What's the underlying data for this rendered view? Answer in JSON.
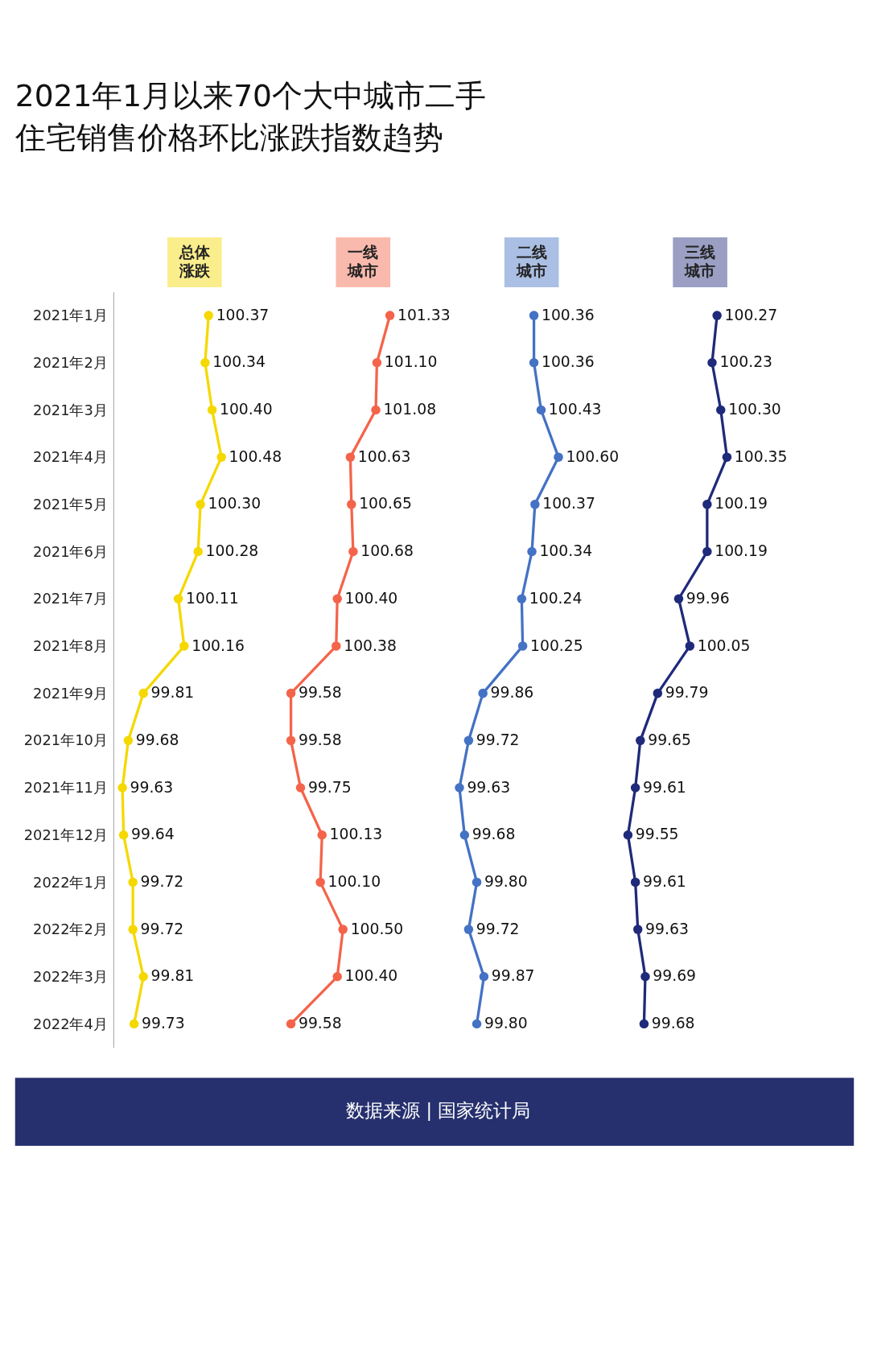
{
  "chart_data": [
    {
      "type": "line",
      "orientation": "horizontal",
      "title": "2021年1月以来70个大中城市二手住宅销售价格环比涨跌指数趋势",
      "annotations": [
        "数据来源 | 国家统计局"
      ],
      "categories": [
        "2021年1月",
        "2021年2月",
        "2021年3月",
        "2021年4月",
        "2021年5月",
        "2021年6月",
        "2021年7月",
        "2021年8月",
        "2021年9月",
        "2021年10月",
        "2021年11月",
        "2021年12月",
        "2022年1月",
        "2022年2月",
        "2022年3月",
        "2022年4月"
      ],
      "tick_labels": "y",
      "marker": "circle",
      "legend": "top",
      "line_style": "solid",
      "series": [
        {
          "name": "总体涨跌",
          "color": "#f5d800",
          "values": [
            100.37,
            100.34,
            100.4,
            100.48,
            100.3,
            100.28,
            100.11,
            100.16,
            99.81,
            99.68,
            99.63,
            99.64,
            99.72,
            99.72,
            99.81,
            99.73
          ],
          "value_labels": [
            "100.37",
            "100.34",
            "100.40",
            "100.48",
            "100.30",
            "100.28",
            "100.11",
            "100.16",
            "99.81",
            "99.68",
            "99.63",
            "99.64",
            "99.72",
            "99.72",
            "99.81",
            "99.73"
          ]
        }
      ]
    },
    {
      "type": "line",
      "orientation": "horizontal",
      "tick_labels": false,
      "marker": "circle",
      "legend": "top",
      "line_style": "solid",
      "series": [
        {
          "name": "一线城市",
          "color": "#f4644a",
          "values": [
            101.33,
            101.1,
            101.08,
            100.63,
            100.65,
            100.68,
            100.4,
            100.38,
            99.58,
            99.58,
            99.75,
            100.13,
            100.1,
            100.5,
            100.4,
            99.58
          ],
          "value_labels": [
            "101.33",
            "101.10",
            "101.08",
            "100.63",
            "100.65",
            "100.68",
            "100.40",
            "100.38",
            "99.58",
            "99.58",
            "99.75",
            "100.13",
            "100.10",
            "100.50",
            "100.40",
            "99.58"
          ]
        }
      ]
    },
    {
      "type": "line",
      "orientation": "horizontal",
      "tick_labels": false,
      "marker": "circle",
      "legend": "top",
      "line_style": "solid",
      "series": [
        {
          "name": "二线城市",
          "color": "#4472c4",
          "values": [
            100.36,
            100.36,
            100.43,
            100.6,
            100.37,
            100.34,
            100.24,
            100.25,
            99.86,
            99.72,
            99.63,
            99.68,
            99.8,
            99.72,
            99.87,
            99.8
          ],
          "value_labels": [
            "100.36",
            "100.36",
            "100.43",
            "100.60",
            "100.37",
            "100.34",
            "100.24",
            "100.25",
            "99.86",
            "99.72",
            "99.63",
            "99.68",
            "99.80",
            "99.72",
            "99.87",
            "99.80"
          ]
        }
      ]
    },
    {
      "type": "line",
      "orientation": "horizontal",
      "tick_labels": false,
      "marker": "circle",
      "legend": "top",
      "line_style": "solid",
      "series": [
        {
          "name": "三线城市",
          "color": "#1f2a7a",
          "values": [
            100.27,
            100.23,
            100.3,
            100.35,
            100.19,
            100.19,
            99.96,
            100.05,
            99.79,
            99.65,
            99.61,
            99.55,
            99.61,
            99.63,
            99.69,
            99.68
          ],
          "value_labels": [
            "100.27",
            "100.23",
            "100.30",
            "100.35",
            "100.19",
            "100.19",
            "99.96",
            "100.05",
            "99.79",
            "99.65",
            "99.61",
            "99.55",
            "99.61",
            "99.63",
            "99.69",
            "99.68"
          ]
        }
      ]
    }
  ]
}
